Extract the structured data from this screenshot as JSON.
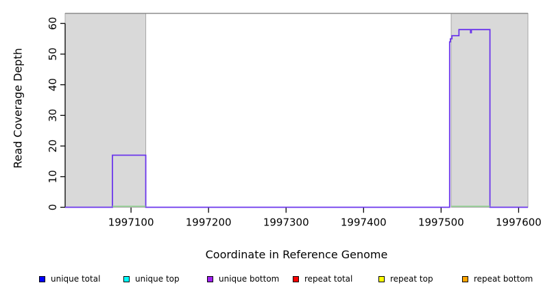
{
  "chart_data": {
    "type": "line",
    "subtype": "step-coverage",
    "title": "",
    "xlabel": "Coordinate in Reference Genome",
    "ylabel": "Read Coverage Depth",
    "xlim": [
      1997015,
      1997612
    ],
    "ylim": [
      0,
      63.3
    ],
    "xticks": [
      1997100,
      1997200,
      1997300,
      1997400,
      1997500,
      1997600
    ],
    "yticks": [
      0,
      10,
      20,
      30,
      40,
      50,
      60
    ],
    "grid": false,
    "frame_top_line": {
      "present": true,
      "color": "#8a8a8a"
    },
    "shaded_regions": [
      {
        "x0": 1997015,
        "x1": 1997119,
        "fill": "#d9d9d9",
        "border": "#a6a6a6"
      },
      {
        "x0": 1997513,
        "x1": 1997612,
        "fill": "#d9d9d9",
        "border": "#a6a6a6"
      }
    ],
    "series": [
      {
        "name": "unique coverage outline (unique total + unique bottom overlap)",
        "color": "#6a35ec",
        "points": [
          [
            1997015,
            0
          ],
          [
            1997076,
            0
          ],
          [
            1997076,
            17
          ],
          [
            1997119,
            17
          ],
          [
            1997119,
            0
          ],
          [
            1997511,
            0
          ],
          [
            1997511,
            54
          ],
          [
            1997512,
            54
          ],
          [
            1997512,
            55
          ],
          [
            1997514,
            55
          ],
          [
            1997514,
            56
          ],
          [
            1997523,
            56
          ],
          [
            1997523,
            58
          ],
          [
            1997538,
            58
          ],
          [
            1997538,
            57
          ],
          [
            1997539,
            57
          ],
          [
            1997539,
            58
          ],
          [
            1997563,
            58
          ],
          [
            1997563,
            0
          ],
          [
            1997612,
            0
          ]
        ]
      },
      {
        "name": "strand overlap segments at zero",
        "color": "#8fd08f",
        "segments": [
          [
            [
              1997076,
              0
            ],
            [
              1997119,
              0
            ]
          ],
          [
            [
              1997513,
              0
            ],
            [
              1997563,
              0
            ]
          ]
        ]
      }
    ],
    "legend_position": "bottom"
  },
  "legend": {
    "items": [
      {
        "label": "unique total",
        "color": "#0000ff"
      },
      {
        "label": "unique top",
        "color": "#00ffff"
      },
      {
        "label": "unique bottom",
        "color": "#a020f0"
      },
      {
        "label": "repeat total",
        "color": "#ff0000"
      },
      {
        "label": "repeat top",
        "color": "#ffff00"
      },
      {
        "label": "repeat bottom",
        "color": "#ffa500"
      }
    ]
  },
  "axis_style": {
    "tick_color": "#000000",
    "tick_label_color": "#000000"
  }
}
